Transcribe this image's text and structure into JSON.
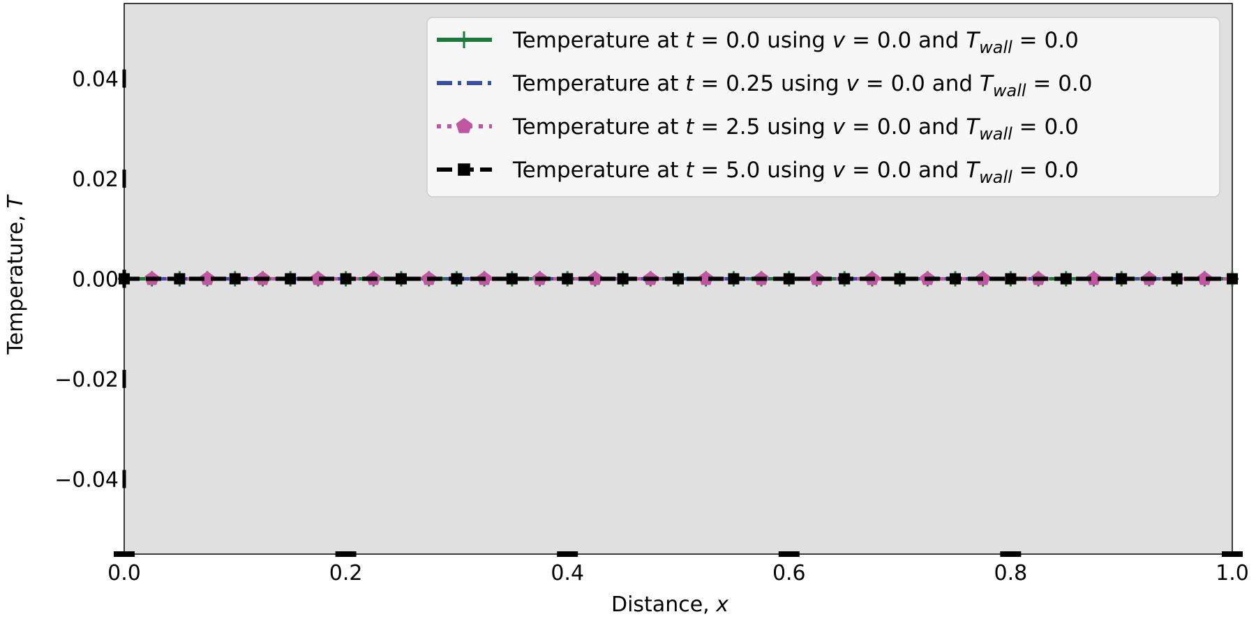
{
  "chart_data": {
    "type": "line",
    "xlabel": "Distance, ",
    "xlabel_var": "x",
    "ylabel": "Temperature, ",
    "ylabel_var": "T",
    "xlim": [
      0.0,
      1.0
    ],
    "ylim": [
      -0.055,
      0.055
    ],
    "x_ticks": [
      0.0,
      0.2,
      0.4,
      0.6,
      0.8,
      1.0
    ],
    "x_tick_labels": [
      "0.0",
      "0.2",
      "0.4",
      "0.6",
      "0.8",
      "1.0"
    ],
    "y_ticks": [
      0.04,
      0.02,
      0.0,
      -0.02,
      -0.04
    ],
    "y_tick_labels": [
      "0.04",
      "0.02",
      "0.00",
      "−0.02",
      "−0.04"
    ],
    "grid": false,
    "legend_position": "top-right",
    "background_color": "#e0e0e0",
    "x": [
      0.0,
      0.025,
      0.05,
      0.075,
      0.1,
      0.125,
      0.15,
      0.175,
      0.2,
      0.225,
      0.25,
      0.275,
      0.3,
      0.325,
      0.35,
      0.375,
      0.4,
      0.425,
      0.45,
      0.475,
      0.5,
      0.525,
      0.55,
      0.575,
      0.6,
      0.625,
      0.65,
      0.675,
      0.7,
      0.725,
      0.75,
      0.775,
      0.8,
      0.825,
      0.85,
      0.875,
      0.9,
      0.925,
      0.95,
      0.975,
      1.0
    ],
    "series": [
      {
        "legend_prefix": "Temperature at ",
        "t_label": "t",
        "t_value": " = 0.0 using ",
        "v_label": "v",
        "v_value": " = 0.0 and ",
        "tw_label": "T",
        "tw_sub": "wall",
        "tw_value": " = 0.0",
        "color": "#1a7a3a",
        "line_style": "solid",
        "marker": "plus",
        "marker_step": 1,
        "values": [
          0,
          0,
          0,
          0,
          0,
          0,
          0,
          0,
          0,
          0,
          0,
          0,
          0,
          0,
          0,
          0,
          0,
          0,
          0,
          0,
          0,
          0,
          0,
          0,
          0,
          0,
          0,
          0,
          0,
          0,
          0,
          0,
          0,
          0,
          0,
          0,
          0,
          0,
          0,
          0,
          0
        ]
      },
      {
        "legend_prefix": "Temperature at ",
        "t_label": "t",
        "t_value": " = 0.25 using ",
        "v_label": "v",
        "v_value": " = 0.0 and ",
        "tw_label": "T",
        "tw_sub": "wall",
        "tw_value": " = 0.0",
        "color": "#3a4fa3",
        "line_style": "dashdot",
        "marker": "none",
        "marker_step": 1,
        "values": [
          0,
          0,
          0,
          0,
          0,
          0,
          0,
          0,
          0,
          0,
          0,
          0,
          0,
          0,
          0,
          0,
          0,
          0,
          0,
          0,
          0,
          0,
          0,
          0,
          0,
          0,
          0,
          0,
          0,
          0,
          0,
          0,
          0,
          0,
          0,
          0,
          0,
          0,
          0,
          0,
          0
        ]
      },
      {
        "legend_prefix": "Temperature at ",
        "t_label": "t",
        "t_value": " = 2.5 using ",
        "v_label": "v",
        "v_value": " = 0.0 and ",
        "tw_label": "T",
        "tw_sub": "wall",
        "tw_value": " = 0.0",
        "color": "#c055a0",
        "line_style": "dotted",
        "marker": "pentagon",
        "marker_step": 1,
        "marker_offset": 1,
        "values": [
          0,
          0,
          0,
          0,
          0,
          0,
          0,
          0,
          0,
          0,
          0,
          0,
          0,
          0,
          0,
          0,
          0,
          0,
          0,
          0,
          0,
          0,
          0,
          0,
          0,
          0,
          0,
          0,
          0,
          0,
          0,
          0,
          0,
          0,
          0,
          0,
          0,
          0,
          0,
          0,
          0
        ]
      },
      {
        "legend_prefix": "Temperature at ",
        "t_label": "t",
        "t_value": " = 5.0 using ",
        "v_label": "v",
        "v_value": " = 0.0 and ",
        "tw_label": "T",
        "tw_sub": "wall",
        "tw_value": " = 0.0",
        "color": "#000000",
        "line_style": "dashed",
        "marker": "square",
        "marker_step": 2,
        "values": [
          0,
          0,
          0,
          0,
          0,
          0,
          0,
          0,
          0,
          0,
          0,
          0,
          0,
          0,
          0,
          0,
          0,
          0,
          0,
          0,
          0,
          0,
          0,
          0,
          0,
          0,
          0,
          0,
          0,
          0,
          0,
          0,
          0,
          0,
          0,
          0,
          0,
          0,
          0,
          0,
          0
        ]
      }
    ]
  }
}
